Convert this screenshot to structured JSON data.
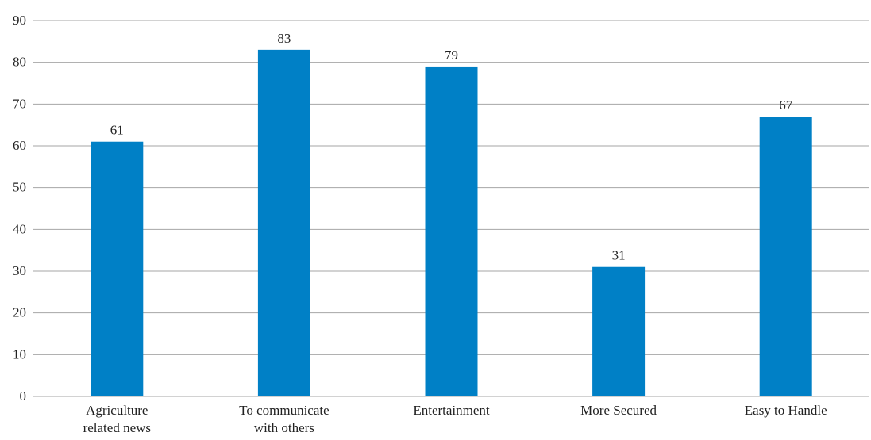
{
  "chart_data": {
    "type": "bar",
    "title": "",
    "xlabel": "",
    "ylabel": "",
    "categories": [
      [
        "Agriculture",
        "related news"
      ],
      [
        "To communicate",
        "with others"
      ],
      [
        "Entertainment"
      ],
      [
        "More Secured"
      ],
      [
        "Easy to Handle"
      ]
    ],
    "values": [
      61,
      83,
      79,
      31,
      67
    ],
    "ylim": [
      0,
      90
    ],
    "yticks": [
      0,
      10,
      20,
      30,
      40,
      50,
      60,
      70,
      80,
      90
    ],
    "grid": true,
    "legend": "none",
    "data_labels": true,
    "colors": {
      "bar": "#0080c6",
      "grid": "#a6a6a6",
      "text": "#222222"
    }
  }
}
